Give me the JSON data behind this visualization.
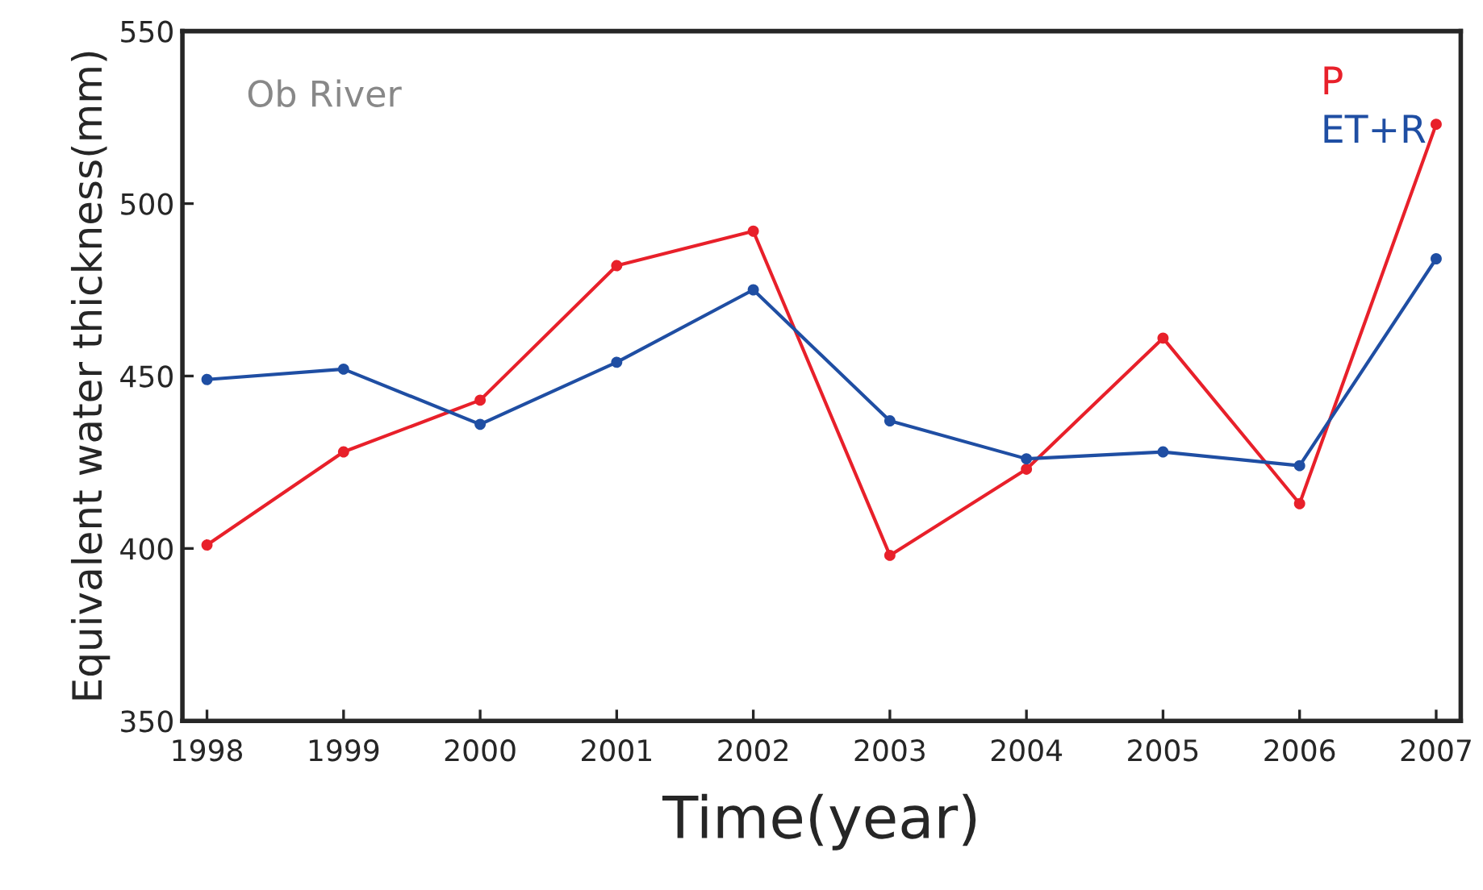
{
  "chart_data": {
    "type": "line",
    "xlabel": "Time(year)",
    "ylabel": "Equivalent water thickness(mm)",
    "x": [
      1998,
      1999,
      2000,
      2001,
      2002,
      2003,
      2004,
      2005,
      2006,
      2007
    ],
    "series": [
      {
        "name": "P",
        "color": "#e8202a",
        "values": [
          401,
          428,
          443,
          482,
          492,
          398,
          423,
          461,
          413,
          523
        ]
      },
      {
        "name": "ET+R",
        "color": "#1f4ea3",
        "values": [
          449,
          452,
          436,
          454,
          475,
          437,
          426,
          428,
          424,
          484
        ]
      }
    ],
    "xlim": [
      1997.82,
      2007.18
    ],
    "xticks": [
      1998,
      1999,
      2000,
      2001,
      2002,
      2003,
      2004,
      2005,
      2006,
      2007
    ],
    "ylim": [
      350,
      550
    ],
    "yticks": [
      350,
      400,
      450,
      500,
      550
    ],
    "annotations": [
      "Ob River"
    ],
    "legend": "top right",
    "grid": false,
    "marker": "circle",
    "line_style": "solid"
  }
}
